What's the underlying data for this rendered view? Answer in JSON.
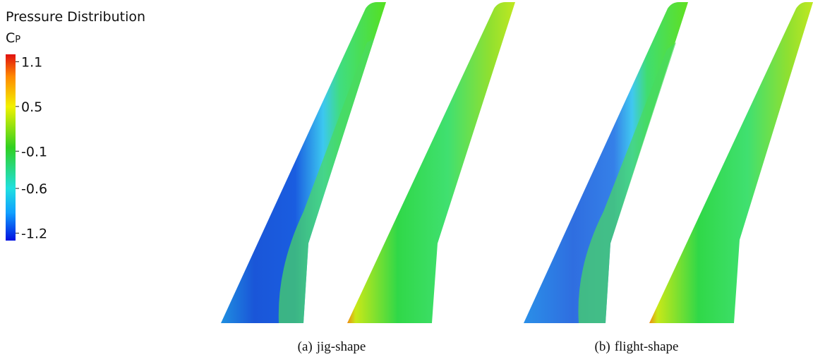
{
  "legend": {
    "title": "Pressure Distribution",
    "variable": "Cp",
    "range": [
      -1.3,
      1.2
    ],
    "ticks": [
      1.1,
      0.5,
      -0.1,
      -0.6,
      -1.2
    ]
  },
  "panels": [
    {
      "label": "(a)",
      "caption": "jig-shape"
    },
    {
      "label": "(b)",
      "caption": "flight-shape"
    }
  ]
}
